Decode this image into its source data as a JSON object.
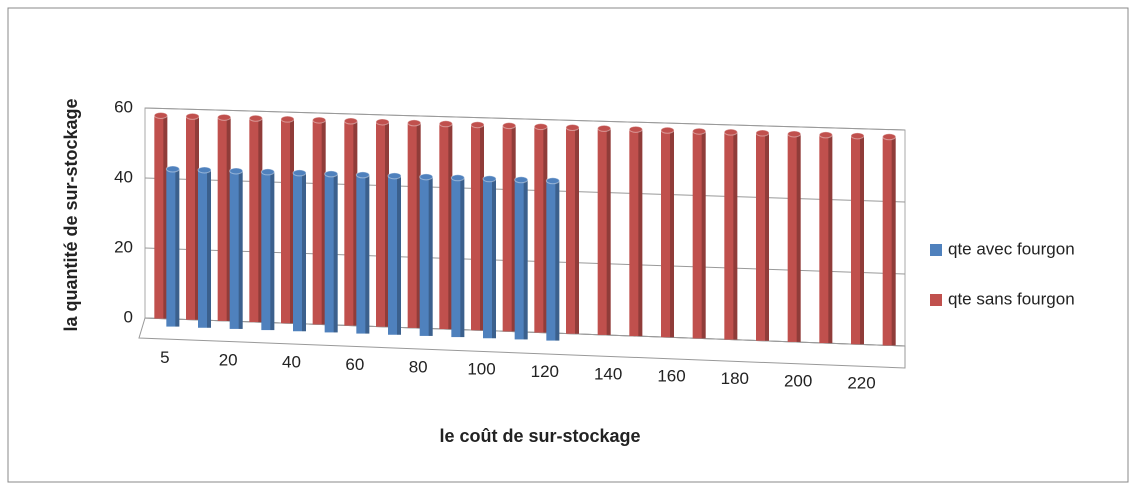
{
  "chart_data": {
    "type": "bar3d",
    "x_label": "le coût de sur-stockage",
    "y_label": "la quantité de sur-stockage",
    "categories": [
      "5",
      null,
      "20",
      null,
      "40",
      null,
      "60",
      null,
      "80",
      null,
      "100",
      null,
      "120",
      null,
      "140",
      null,
      "160",
      null,
      "180",
      null,
      "200",
      null,
      "220",
      null
    ],
    "series": [
      {
        "name": "qte sans fourgon",
        "color": "#c0504d",
        "values": [
          58,
          58,
          58,
          58,
          58,
          58,
          58,
          58,
          58,
          58,
          58,
          58,
          58,
          58,
          58,
          58,
          58,
          58,
          58,
          58,
          58,
          58,
          58,
          58
        ]
      },
      {
        "name": "qte avec fourgon",
        "color": "#4f81bd",
        "values": [
          45,
          45,
          45,
          45,
          45,
          45,
          45,
          45,
          45,
          45,
          45,
          45,
          45,
          null,
          null,
          null,
          null,
          null,
          null,
          null,
          null,
          null,
          null,
          null
        ]
      }
    ],
    "ylim": [
      0,
      60
    ],
    "yticks": [
      0,
      20,
      40,
      60
    ],
    "grid": true,
    "legend": "right"
  }
}
